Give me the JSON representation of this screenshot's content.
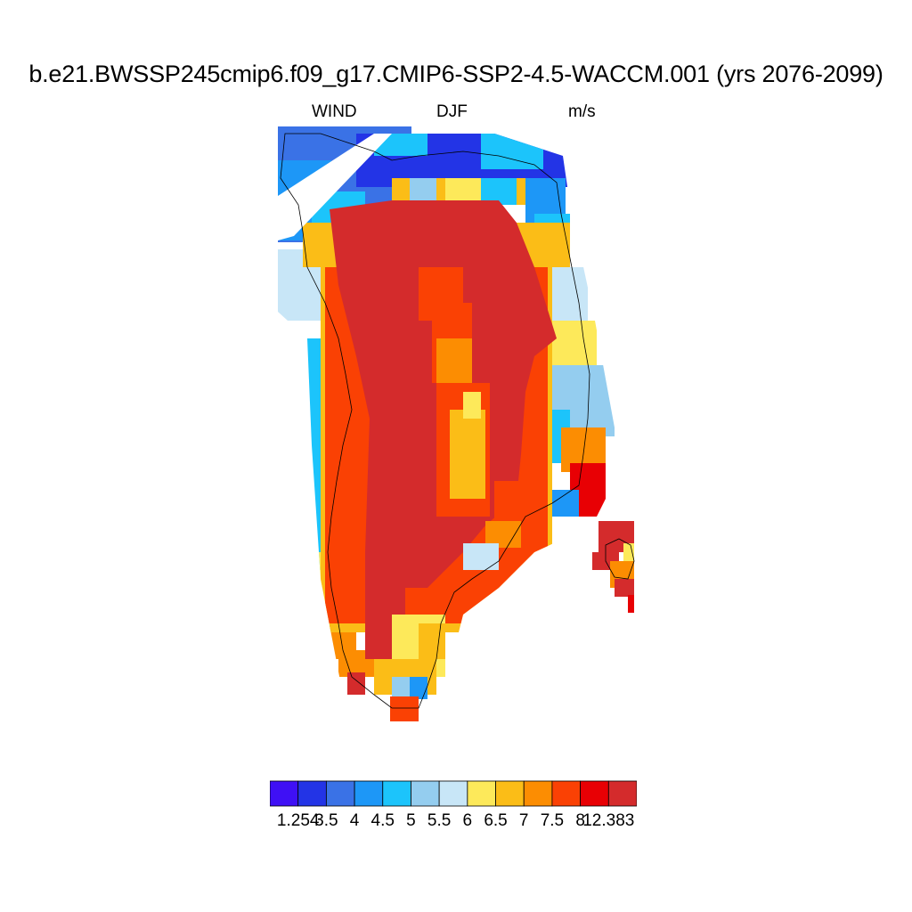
{
  "title": "b.e21.BWSSP245cmip6.f09_g17.CMIP6-SSP2-4.5-WACCM.001 (yrs 2076-2099)",
  "left_string": "WIND",
  "center_string": "DJF",
  "right_string": "m/s",
  "colorbar": {
    "colors": [
      "#3f10f5",
      "#2334e6",
      "#3a72e6",
      "#1d97f7",
      "#1cc4fb",
      "#94cdef",
      "#c8e6f7",
      "#fde95a",
      "#fbbd17",
      "#fc8d02",
      "#fa4104",
      "#e80004",
      "#d42b2c"
    ],
    "labels": [
      "1.254",
      "3.5",
      "4",
      "4.5",
      "5",
      "5.5",
      "6",
      "6.5",
      "7",
      "7.5",
      "8",
      "12.383"
    ]
  },
  "icons": {
    "map": "greenland-wind-map"
  }
}
